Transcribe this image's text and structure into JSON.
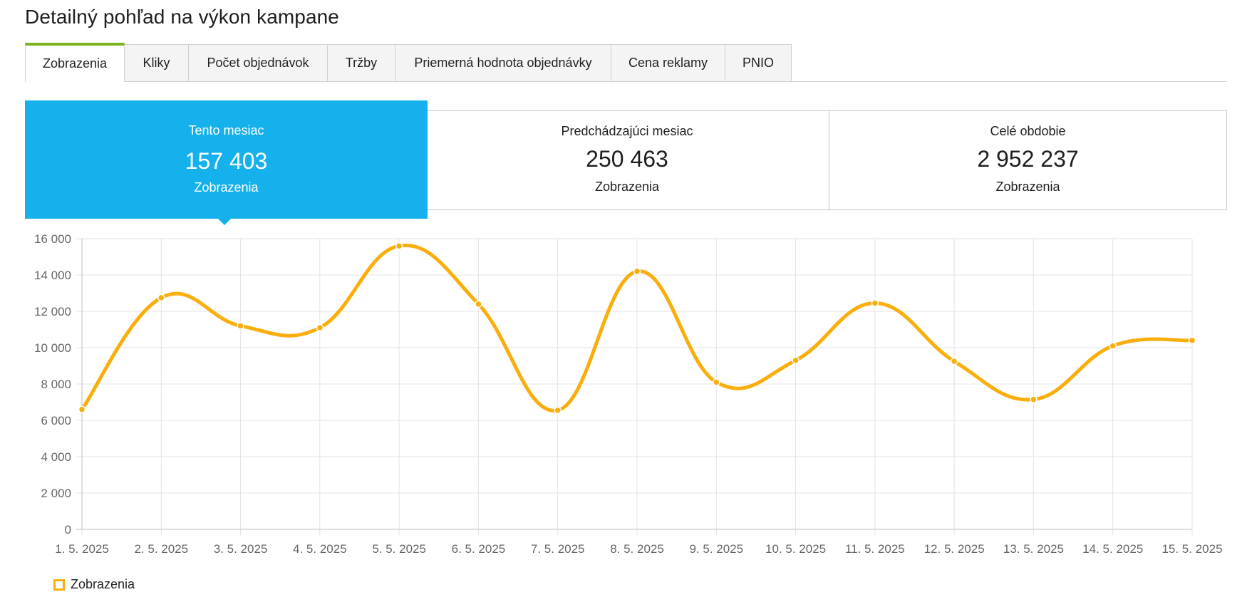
{
  "page_title": "Detailný pohľad na výkon kampane",
  "tabs": [
    {
      "label": "Zobrazenia",
      "active": true
    },
    {
      "label": "Kliky",
      "active": false
    },
    {
      "label": "Počet objednávok",
      "active": false
    },
    {
      "label": "Tržby",
      "active": false
    },
    {
      "label": "Priemerná hodnota objednávky",
      "active": false
    },
    {
      "label": "Cena reklamy",
      "active": false
    },
    {
      "label": "PNIO",
      "active": false
    }
  ],
  "stats": {
    "this_month": {
      "label": "Tento mesiac",
      "value": "157 403",
      "unit": "Zobrazenia",
      "active": true
    },
    "previous_month": {
      "label": "Predchádzajúci mesiac",
      "value": "250 463",
      "unit": "Zobrazenia"
    },
    "whole_period": {
      "label": "Celé obdobie",
      "value": "2 952 237",
      "unit": "Zobrazenia"
    }
  },
  "colors": {
    "accent_blue": "#15b1ec",
    "tab_active_border": "#7ab51d",
    "series_line": "#f9ae0b",
    "grid": "#e3e3e3"
  },
  "legend": {
    "label": "Zobrazenia"
  },
  "chart_data": {
    "type": "line",
    "smooth": true,
    "categories": [
      "1. 5. 2025",
      "2. 5. 2025",
      "3. 5. 2025",
      "4. 5. 2025",
      "5. 5. 2025",
      "6. 5. 2025",
      "7. 5. 2025",
      "8. 5. 2025",
      "9. 5. 2025",
      "10. 5. 2025",
      "11. 5. 2025",
      "12. 5. 2025",
      "13. 5. 2025",
      "14. 5. 2025",
      "15. 5. 2025"
    ],
    "series": [
      {
        "name": "Zobrazenia",
        "values": [
          6600,
          12750,
          11200,
          11100,
          15600,
          12400,
          6550,
          14200,
          8100,
          9300,
          12450,
          9250,
          7150,
          10100,
          10400
        ]
      }
    ],
    "ylim": [
      0,
      16000
    ],
    "yticks": [
      0,
      2000,
      4000,
      6000,
      8000,
      10000,
      12000,
      14000,
      16000
    ],
    "ytick_labels": [
      "0",
      "2 000",
      "4 000",
      "6 000",
      "8 000",
      "10 000",
      "12 000",
      "14 000",
      "16 000"
    ],
    "grid": true,
    "legend_position": "bottom-left"
  }
}
